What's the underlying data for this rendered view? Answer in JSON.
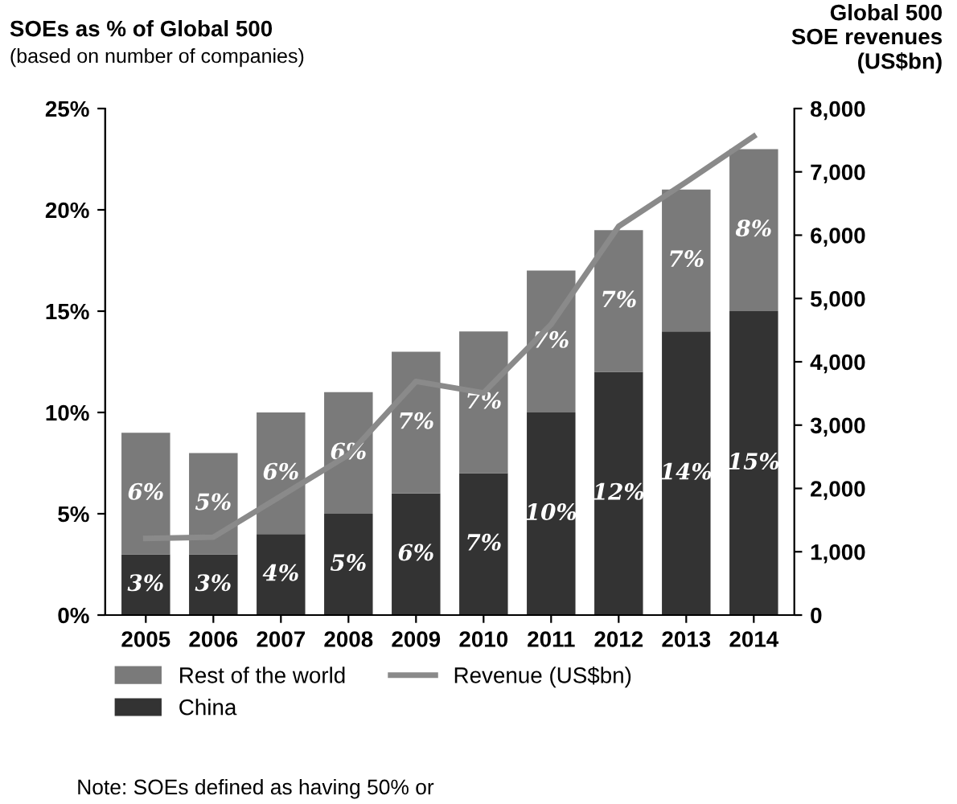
{
  "chart_data": {
    "type": "bar",
    "stacked": true,
    "ylabel": "SOEs as % of Global 500",
    "subtitle": "(based on number of companies)",
    "y2label": "Global 500\nSOE revenues\n(US$bn)",
    "categories": [
      "2005",
      "2006",
      "2007",
      "2008",
      "2009",
      "2010",
      "2011",
      "2012",
      "2013",
      "2014"
    ],
    "series": [
      {
        "name": "China",
        "color": "#333333",
        "values": [
          3,
          3,
          4,
          5,
          6,
          7,
          10,
          12,
          14,
          15
        ],
        "value_labels": [
          "3%",
          "3%",
          "4%",
          "5%",
          "6%",
          "7%",
          "10%",
          "12%",
          "14%",
          "15%"
        ]
      },
      {
        "name": "Rest of the world",
        "color": "#7a7a7a",
        "values": [
          6,
          5,
          6,
          6,
          7,
          7,
          7,
          7,
          7,
          8
        ],
        "value_labels": [
          "6%",
          "5%",
          "6%",
          "6%",
          "7%",
          "7%",
          "7%",
          "7%",
          "7%",
          "8%"
        ]
      },
      {
        "name": "Revenue (US$bn)",
        "type": "line",
        "axis": "y2",
        "color": "#8a8a8a",
        "values": [
          1210,
          1230,
          1880,
          2530,
          3690,
          3510,
          4590,
          6140,
          6840,
          7560
        ]
      }
    ],
    "ylim": [
      0,
      25
    ],
    "yticks": [
      {
        "value": 0,
        "label": "0%"
      },
      {
        "value": 5,
        "label": "5%"
      },
      {
        "value": 10,
        "label": "10%"
      },
      {
        "value": 15,
        "label": "15%"
      },
      {
        "value": 20,
        "label": "20%"
      },
      {
        "value": 25,
        "label": "25%"
      }
    ],
    "y2lim": [
      0,
      8000
    ],
    "y2ticks": [
      {
        "value": 0,
        "label": "0"
      },
      {
        "value": 1000,
        "label": "1,000"
      },
      {
        "value": 2000,
        "label": "2,000"
      },
      {
        "value": 3000,
        "label": "3,000"
      },
      {
        "value": 4000,
        "label": "4,000"
      },
      {
        "value": 5000,
        "label": "5,000"
      },
      {
        "value": 6000,
        "label": "6,000"
      },
      {
        "value": 7000,
        "label": "7,000"
      },
      {
        "value": 8000,
        "label": "8,000"
      }
    ],
    "grid": false,
    "legend": "bottom",
    "annotations": [
      "Note: SOEs defined as having 50% or"
    ]
  }
}
